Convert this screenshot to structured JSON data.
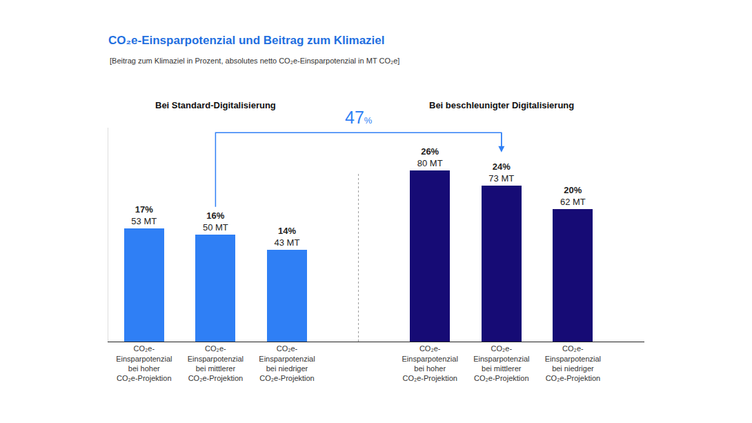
{
  "chart_data": {
    "type": "bar",
    "title": "CO₂e-Einsparpotenzial und Beitrag zum Klimaziel",
    "subtitle": "[Beitrag zum Klimaziel in Prozent, absolutes netto CO₂e-Einsparpotenzial in MT CO₂e]",
    "categories": [
      "CO₂e-Einsparpotenzial bei hoher CO₂e-Projektion",
      "CO₂e-Einsparpotenzial bei mittlerer CO₂e-Projektion",
      "CO₂e-Einsparpotenzial bei niedriger CO₂e-Projektion"
    ],
    "series": [
      {
        "name": "Bei Standard-Digitalisierung",
        "color": "#2f7ff5",
        "values": [
          53,
          50,
          43
        ],
        "value_labels": [
          "53 MT",
          "50 MT",
          "43 MT"
        ],
        "contribution_labels": [
          "17%",
          "16%",
          "14%"
        ]
      },
      {
        "name": "Bei beschleunigter Digitalisierung",
        "color": "#160b75",
        "values": [
          80,
          73,
          62
        ],
        "value_labels": [
          "80 MT",
          "73 MT",
          "62 MT"
        ],
        "contribution_labels": [
          "26%",
          "24%",
          "20%"
        ]
      }
    ],
    "annotation": "47%",
    "ylim": [
      0,
      100
    ],
    "yticks": [],
    "tick_labels": "x",
    "data_labels": true,
    "grid": false
  }
}
